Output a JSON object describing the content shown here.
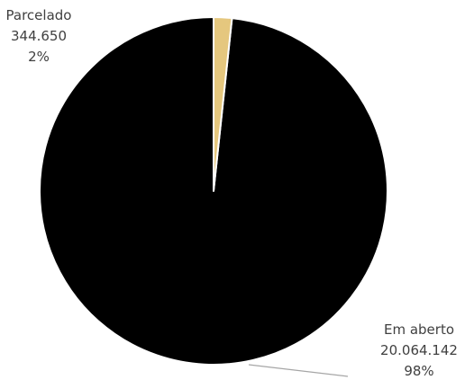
{
  "chart_data": {
    "type": "pie",
    "slices": [
      {
        "label": "Em aberto",
        "value": 20064142,
        "value_text": "20.064.142",
        "percent_text": "98%",
        "color": "#000000"
      },
      {
        "label": "Parcelado",
        "value": 344650,
        "value_text": "344.650",
        "percent_text": "2%",
        "color": "#E5C77E"
      }
    ],
    "start_angle_degrees": 0,
    "direction": "clockwise",
    "slice_border_color": "#ffffff",
    "leader_line_color": "#A6A6A6"
  }
}
